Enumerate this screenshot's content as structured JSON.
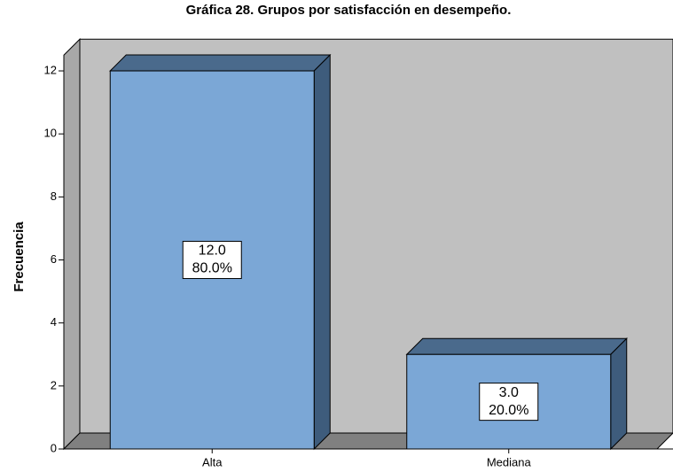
{
  "chart_data": {
    "type": "bar3d",
    "title": "Gráfica 28. Grupos por satisfacción en desempeño.",
    "y_label": "Frecuencia",
    "categories": [
      "Alta",
      "Mediana"
    ],
    "values": [
      12,
      3
    ],
    "value_labels": [
      "12.0",
      "3.0"
    ],
    "percentages": [
      80,
      20
    ],
    "percentage_labels": [
      "80.0%",
      "20.0%"
    ],
    "color": "#7ba7d6",
    "ylim": [
      0,
      12.5
    ],
    "yticks": [
      0,
      2,
      4,
      6,
      8,
      10,
      12
    ]
  }
}
